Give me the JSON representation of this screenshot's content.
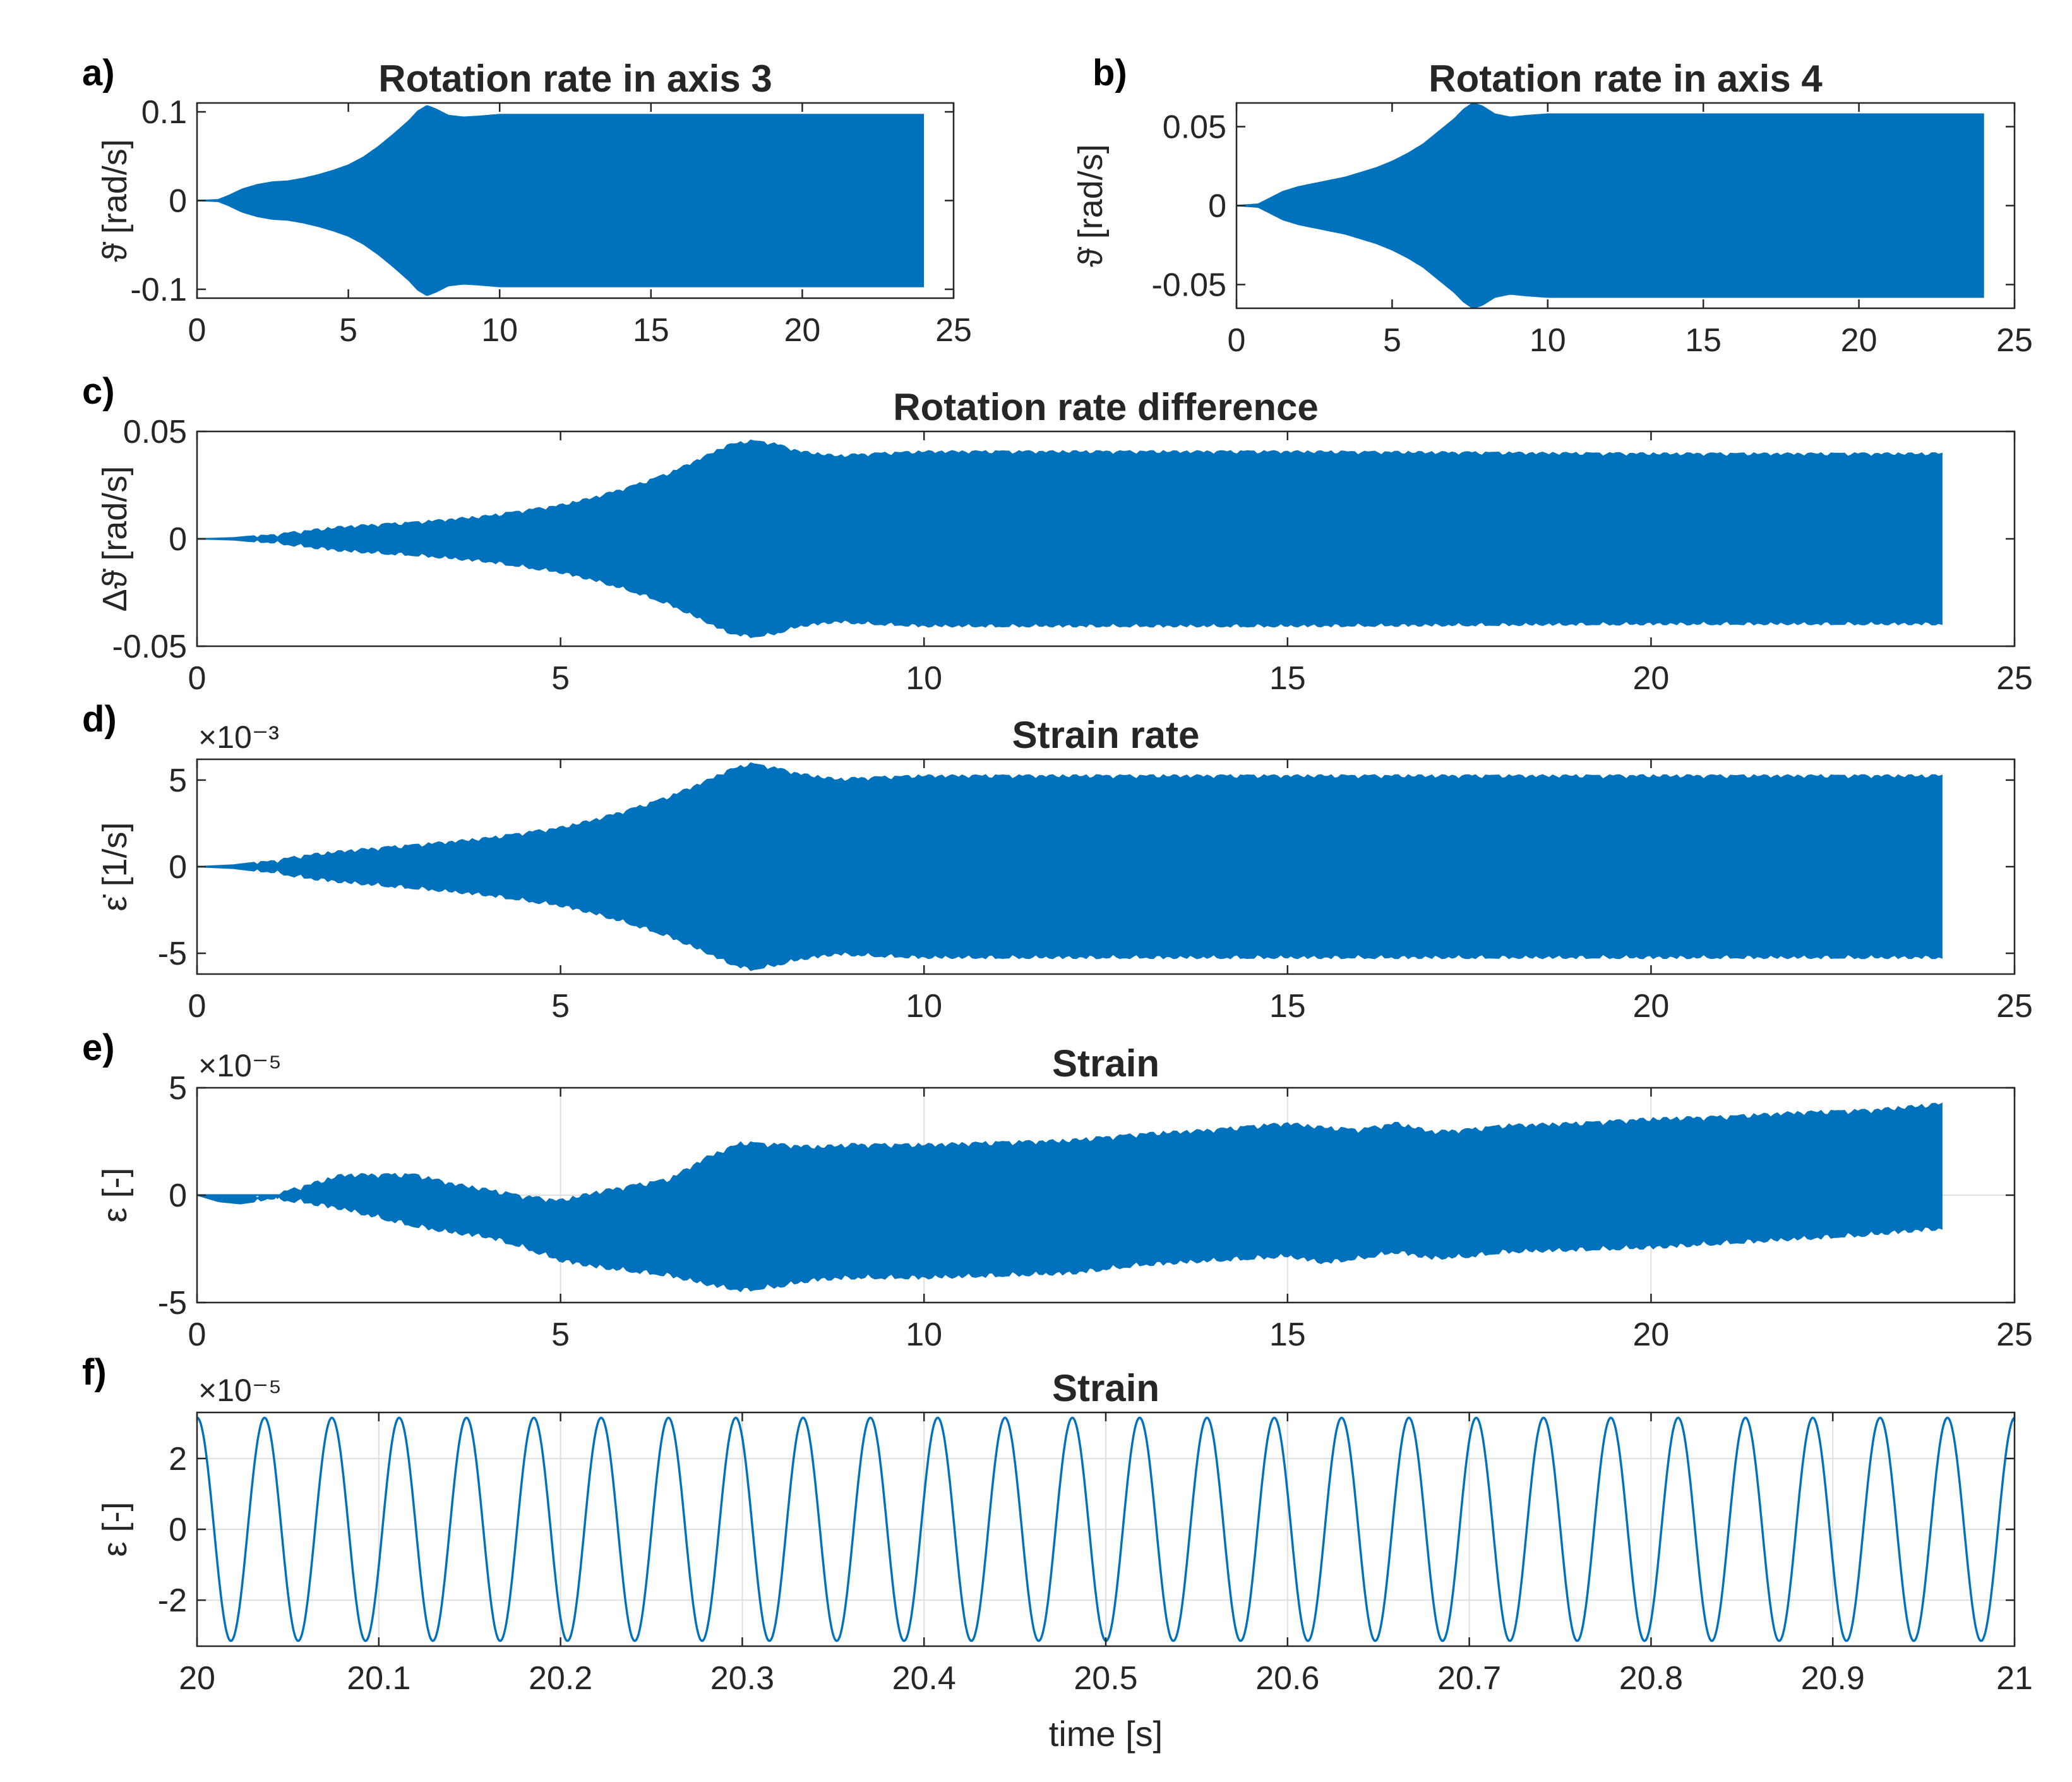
{
  "colors": {
    "signal": "#0072BD",
    "axis": "#262626",
    "grid": "#DFDFDF",
    "background": "#FFFFFF"
  },
  "chart_data": [
    {
      "id": "a",
      "panel_label": "a)",
      "type": "area",
      "title": "Rotation rate in axis 3",
      "ylabel": "ϑ̇ [rad/s]",
      "xlabel": "",
      "xlim": [
        0,
        25
      ],
      "ylim": [
        -0.11,
        0.11
      ],
      "grid": false,
      "exponent": "",
      "xticks": [
        0,
        5,
        10,
        15,
        20,
        25
      ],
      "xtick_labels": [
        "0",
        "5",
        "10",
        "15",
        "20",
        "25"
      ],
      "yticks": [
        -0.1,
        0,
        0.1
      ],
      "ytick_labels": [
        "-0.1",
        "0",
        "0.1"
      ],
      "envelope": {
        "t": [
          0,
          0.7,
          1,
          1.5,
          2,
          2.5,
          3,
          3.5,
          4,
          4.5,
          5,
          5.5,
          6,
          6.5,
          7,
          7.3,
          7.6,
          7.9,
          8.3,
          8.8,
          9.3,
          10,
          11,
          12,
          15,
          20,
          24
        ],
        "upper": [
          0,
          0.001,
          0.005,
          0.013,
          0.018,
          0.021,
          0.022,
          0.025,
          0.029,
          0.034,
          0.04,
          0.049,
          0.061,
          0.075,
          0.09,
          0.101,
          0.107,
          0.103,
          0.096,
          0.094,
          0.095,
          0.097,
          0.097,
          0.097,
          0.097,
          0.097,
          0.097
        ],
        "lower": [
          0,
          -0.001,
          -0.005,
          -0.013,
          -0.018,
          -0.021,
          -0.022,
          -0.025,
          -0.029,
          -0.034,
          -0.04,
          -0.049,
          -0.061,
          -0.075,
          -0.09,
          -0.101,
          -0.107,
          -0.103,
          -0.096,
          -0.094,
          -0.095,
          -0.097,
          -0.097,
          -0.097,
          -0.097,
          -0.097,
          -0.097
        ]
      },
      "ripple": 0
    },
    {
      "id": "b",
      "panel_label": "b)",
      "type": "area",
      "title": "Rotation rate in axis 4",
      "ylabel": "ϑ̇ [rad/s]",
      "xlabel": "",
      "xlim": [
        0,
        25
      ],
      "ylim": [
        -0.065,
        0.065
      ],
      "grid": false,
      "exponent": "",
      "xticks": [
        0,
        5,
        10,
        15,
        20,
        25
      ],
      "xtick_labels": [
        "0",
        "5",
        "10",
        "15",
        "20",
        "25"
      ],
      "yticks": [
        -0.05,
        0,
        0.05
      ],
      "ytick_labels": [
        "-0.05",
        "0",
        "0.05"
      ],
      "envelope": {
        "t": [
          0,
          0.7,
          1,
          1.5,
          2,
          2.5,
          3,
          3.5,
          4,
          4.5,
          5,
          5.5,
          6,
          6.5,
          7,
          7.3,
          7.6,
          7.9,
          8.3,
          8.8,
          9.3,
          10,
          11,
          12,
          15,
          20,
          24
        ],
        "upper": [
          0,
          0.001,
          0.004,
          0.009,
          0.012,
          0.014,
          0.016,
          0.018,
          0.021,
          0.024,
          0.028,
          0.033,
          0.039,
          0.047,
          0.055,
          0.061,
          0.065,
          0.063,
          0.058,
          0.056,
          0.057,
          0.058,
          0.058,
          0.058,
          0.058,
          0.058,
          0.058
        ],
        "lower": [
          0,
          -0.001,
          -0.004,
          -0.009,
          -0.012,
          -0.014,
          -0.016,
          -0.018,
          -0.021,
          -0.024,
          -0.028,
          -0.033,
          -0.039,
          -0.047,
          -0.055,
          -0.061,
          -0.065,
          -0.063,
          -0.058,
          -0.056,
          -0.057,
          -0.058,
          -0.058,
          -0.058,
          -0.058,
          -0.058,
          -0.058
        ]
      },
      "ripple": 0
    },
    {
      "id": "c",
      "panel_label": "c)",
      "type": "area",
      "title": "Rotation rate difference",
      "ylabel": "Δϑ̇ [rad/s]",
      "xlabel": "",
      "xlim": [
        0,
        25
      ],
      "ylim": [
        -0.05,
        0.05
      ],
      "grid": false,
      "exponent": "",
      "xticks": [
        0,
        5,
        10,
        15,
        20,
        25
      ],
      "xtick_labels": [
        "0",
        "5",
        "10",
        "15",
        "20",
        "25"
      ],
      "yticks": [
        -0.05,
        0,
        0.05
      ],
      "ytick_labels": [
        "-0.05",
        "0",
        "0.05"
      ],
      "envelope": {
        "t": [
          0,
          0.5,
          1,
          1.5,
          2,
          3,
          4,
          5,
          5.5,
          6,
          6.5,
          7,
          7.3,
          7.6,
          7.9,
          8.3,
          8.8,
          9.3,
          10,
          12,
          15,
          20,
          24
        ],
        "upper": [
          0,
          0.0005,
          0.002,
          0.004,
          0.006,
          0.008,
          0.011,
          0.016,
          0.02,
          0.025,
          0.031,
          0.039,
          0.044,
          0.046,
          0.045,
          0.041,
          0.039,
          0.04,
          0.041,
          0.041,
          0.041,
          0.04,
          0.04
        ],
        "lower": [
          0,
          -0.0005,
          -0.002,
          -0.004,
          -0.006,
          -0.008,
          -0.011,
          -0.016,
          -0.02,
          -0.025,
          -0.031,
          -0.039,
          -0.044,
          -0.046,
          -0.045,
          -0.041,
          -0.039,
          -0.04,
          -0.041,
          -0.041,
          -0.041,
          -0.04,
          -0.04
        ]
      },
      "ripple": 0.0018
    },
    {
      "id": "d",
      "panel_label": "d)",
      "type": "area",
      "title": "Strain rate",
      "ylabel": "ε̇ [1/s]",
      "xlabel": "",
      "xlim": [
        0,
        25
      ],
      "ylim": [
        -6.2,
        6.2
      ],
      "grid": false,
      "exponent": "×10⁻³",
      "xticks": [
        0,
        5,
        10,
        15,
        20,
        25
      ],
      "xtick_labels": [
        "0",
        "5",
        "10",
        "15",
        "20",
        "25"
      ],
      "yticks": [
        -5,
        0,
        5
      ],
      "ytick_labels": [
        "-5",
        "0",
        "5"
      ],
      "envelope": {
        "t": [
          0,
          0.5,
          1,
          1.5,
          2,
          3,
          4,
          5,
          5.5,
          6,
          6.5,
          7,
          7.3,
          7.6,
          7.9,
          8.3,
          8.8,
          9.3,
          10,
          12,
          15,
          20,
          24
        ],
        "upper": [
          0,
          0.1,
          0.35,
          0.7,
          0.95,
          1.3,
          1.7,
          2.3,
          2.8,
          3.4,
          4.1,
          5.0,
          5.6,
          6.0,
          5.8,
          5.4,
          5.1,
          5.2,
          5.3,
          5.3,
          5.3,
          5.3,
          5.3
        ],
        "lower": [
          0,
          -0.1,
          -0.35,
          -0.7,
          -0.95,
          -1.3,
          -1.7,
          -2.3,
          -2.8,
          -3.4,
          -4.1,
          -5.0,
          -5.6,
          -6.0,
          -5.8,
          -5.4,
          -5.1,
          -5.2,
          -5.3,
          -5.3,
          -5.3,
          -5.3,
          -5.3
        ]
      },
      "ripple": 0.25
    },
    {
      "id": "e",
      "panel_label": "e)",
      "type": "area",
      "title": "Strain",
      "ylabel": "ε [-]",
      "xlabel": "",
      "xlim": [
        0,
        25
      ],
      "ylim": [
        -5,
        5
      ],
      "grid": true,
      "exponent": "×10⁻⁵",
      "xticks": [
        0,
        5,
        10,
        15,
        20,
        25
      ],
      "xtick_labels": [
        "0",
        "5",
        "10",
        "15",
        "20",
        "25"
      ],
      "yticks": [
        -5,
        0,
        5
      ],
      "ytick_labels": [
        "-5",
        "0",
        "5"
      ],
      "envelope": {
        "t": [
          0,
          0.3,
          0.6,
          1,
          1.5,
          2,
          2.5,
          3,
          3.5,
          4,
          4.5,
          5,
          5.5,
          6,
          6.5,
          7,
          7.5,
          8,
          8.5,
          9,
          10,
          11,
          12,
          13,
          14,
          15,
          15.5,
          16,
          16.5,
          17,
          17.5,
          18,
          19,
          20,
          21,
          22,
          23,
          24
        ],
        "upper": [
          0,
          0.0,
          0.0,
          0.0,
          0.5,
          1.0,
          1.0,
          1.0,
          0.6,
          0.3,
          0.0,
          -0.2,
          0.2,
          0.5,
          0.8,
          1.8,
          2.5,
          2.4,
          2.3,
          2.4,
          2.4,
          2.5,
          2.6,
          2.9,
          3.1,
          3.4,
          3.2,
          3.1,
          3.4,
          3.0,
          3.1,
          3.3,
          3.4,
          3.6,
          3.7,
          3.9,
          4.0,
          4.3
        ],
        "lower": [
          0,
          -0.3,
          -0.4,
          -0.2,
          -0.4,
          -0.7,
          -1.1,
          -1.5,
          -1.8,
          -2.0,
          -2.5,
          -3.1,
          -3.4,
          -3.6,
          -3.8,
          -4.2,
          -4.5,
          -4.3,
          -4.0,
          -3.9,
          -3.9,
          -3.8,
          -3.7,
          -3.3,
          -3.1,
          -2.9,
          -3.2,
          -3.0,
          -2.7,
          -3.0,
          -2.9,
          -2.7,
          -2.6,
          -2.5,
          -2.3,
          -2.1,
          -1.9,
          -1.6
        ]
      },
      "ripple": 0.25
    },
    {
      "id": "f",
      "panel_label": "f)",
      "type": "line",
      "title": "Strain",
      "ylabel": "ε [-]",
      "xlabel": "time [s]",
      "xlim": [
        20,
        21
      ],
      "ylim": [
        -3.3,
        3.3
      ],
      "grid": true,
      "exponent": "×10⁻⁵",
      "xticks": [
        20,
        20.1,
        20.2,
        20.3,
        20.4,
        20.5,
        20.6,
        20.7,
        20.8,
        20.9,
        21
      ],
      "xtick_labels": [
        "20",
        "20.1",
        "20.2",
        "20.3",
        "20.4",
        "20.5",
        "20.6",
        "20.7",
        "20.8",
        "20.9",
        "21"
      ],
      "yticks": [
        -2,
        0,
        2
      ],
      "ytick_labels": [
        "-2",
        "0",
        "2"
      ],
      "signal": {
        "amplitude": 3.15,
        "frequency_hz": 27,
        "phase_rad": 1.55
      }
    }
  ]
}
